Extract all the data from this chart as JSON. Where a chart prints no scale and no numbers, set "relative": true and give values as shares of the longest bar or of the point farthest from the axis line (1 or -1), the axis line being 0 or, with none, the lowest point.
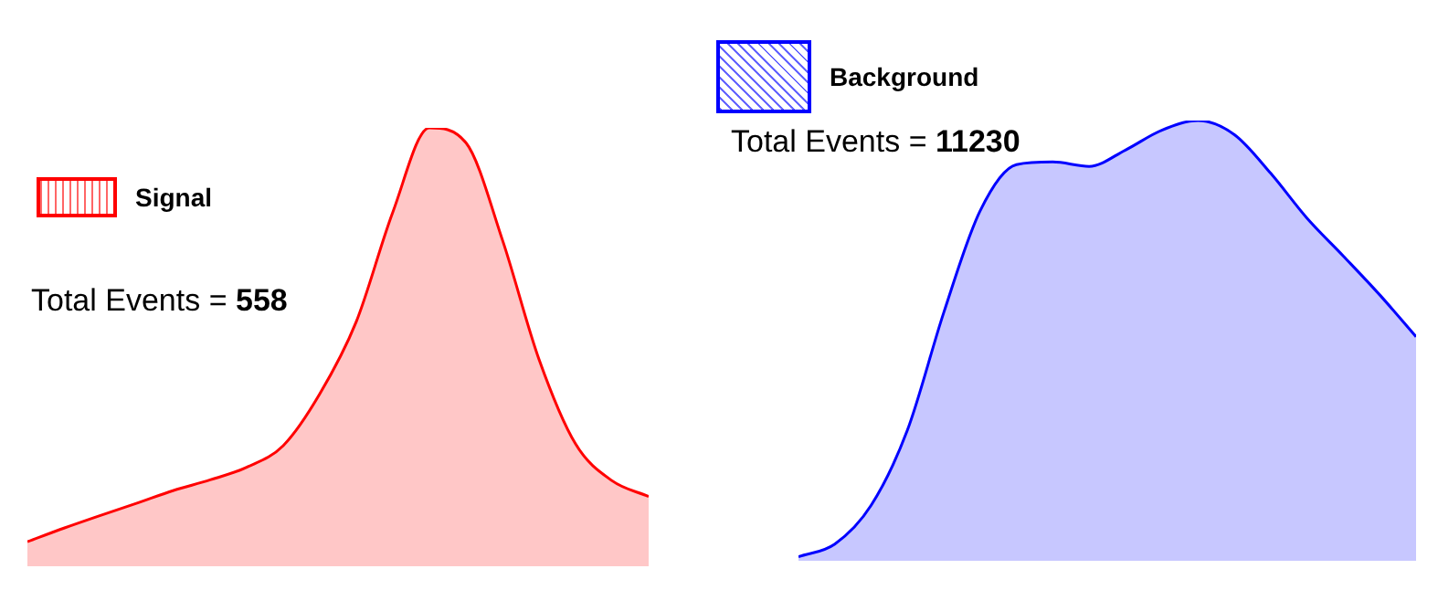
{
  "chart_data": [
    {
      "type": "area",
      "relative": true,
      "legend": "top left",
      "categories": [
        null,
        null,
        null,
        null,
        null,
        null,
        null,
        null,
        null,
        null,
        null,
        null,
        null,
        null,
        null,
        null,
        null,
        null
      ],
      "series": [
        {
          "name": "Signal",
          "color": "#ff0000",
          "values": [
            0.056,
            0.087,
            0.116,
            0.144,
            0.173,
            0.197,
            0.226,
            0.275,
            0.393,
            0.558,
            0.808,
            1,
            0.966,
            0.744,
            0.472,
            0.279,
            0.195,
            0.159
          ]
        }
      ],
      "annotations": [
        "Total Events = 558"
      ]
    },
    {
      "type": "area",
      "relative": true,
      "legend": "top left",
      "categories": [
        null,
        null,
        null,
        null,
        null,
        null,
        null,
        null,
        null,
        null,
        null,
        null,
        null,
        null,
        null,
        null,
        null,
        null
      ],
      "series": [
        {
          "name": "Background",
          "color": "#0000ff",
          "values": [
            0.009,
            0.038,
            0.126,
            0.297,
            0.564,
            0.795,
            0.9,
            0.906,
            0.896,
            0.933,
            0.978,
            1,
            0.968,
            0.88,
            0.778,
            0.692,
            0.604,
            0.509
          ]
        }
      ],
      "annotations": [
        "Total Events = 11230"
      ]
    }
  ]
}
